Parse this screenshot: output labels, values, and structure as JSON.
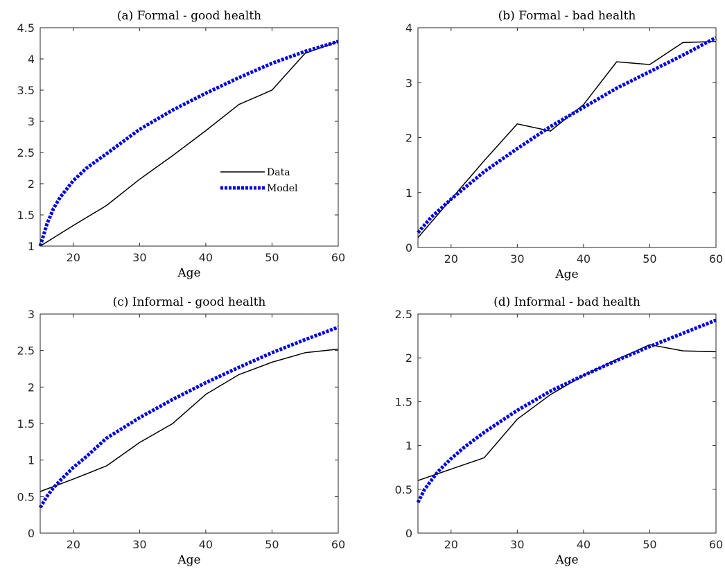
{
  "chart_data": [
    {
      "type": "line",
      "title": "(a) Formal - good health",
      "xlabel": "Age",
      "ylabel": "",
      "xlim": [
        15,
        60
      ],
      "ylim": [
        1,
        4.5
      ],
      "xticks": [
        20,
        30,
        40,
        50,
        60
      ],
      "yticks": [
        1,
        1.5,
        2,
        2.5,
        3,
        3.5,
        4,
        4.5
      ],
      "ytick_labels": [
        "1",
        "1.5",
        "2",
        "2.5",
        "3",
        "3.5",
        "4",
        "4.5"
      ],
      "legend": true,
      "legend_position": "center-right",
      "series": [
        {
          "name": "Data",
          "style": "solid",
          "color": "#000000",
          "x": [
            15,
            20,
            25,
            30,
            35,
            40,
            45,
            50,
            55,
            60
          ],
          "y": [
            1.0,
            1.33,
            1.65,
            2.07,
            2.45,
            2.85,
            3.27,
            3.5,
            4.09,
            4.28
          ]
        },
        {
          "name": "Model",
          "style": "dotted",
          "color": "#0000e6",
          "x": [
            15,
            16,
            17,
            18,
            20,
            22,
            25,
            30,
            35,
            40,
            45,
            50,
            55,
            60
          ],
          "y": [
            1.0,
            1.35,
            1.6,
            1.78,
            2.05,
            2.25,
            2.48,
            2.87,
            3.18,
            3.45,
            3.7,
            3.93,
            4.12,
            4.28
          ]
        }
      ]
    },
    {
      "type": "line",
      "title": "(b) Formal - bad health",
      "xlabel": "Age",
      "ylabel": "",
      "xlim": [
        15,
        60
      ],
      "ylim": [
        0,
        4
      ],
      "xticks": [
        20,
        30,
        40,
        50,
        60
      ],
      "yticks": [
        0,
        1,
        2,
        3,
        4
      ],
      "ytick_labels": [
        "0",
        "1",
        "2",
        "3",
        "4"
      ],
      "legend": false,
      "series": [
        {
          "name": "Data",
          "style": "solid",
          "color": "#000000",
          "x": [
            15,
            20,
            25,
            30,
            35,
            40,
            45,
            50,
            55,
            60
          ],
          "y": [
            0.18,
            0.88,
            1.58,
            2.25,
            2.12,
            2.6,
            3.38,
            3.33,
            3.73,
            3.75
          ]
        },
        {
          "name": "Model",
          "style": "dotted",
          "color": "#0000e6",
          "x": [
            15,
            17,
            20,
            25,
            30,
            35,
            40,
            45,
            50,
            55,
            60
          ],
          "y": [
            0.27,
            0.55,
            0.88,
            1.38,
            1.8,
            2.2,
            2.55,
            2.9,
            3.2,
            3.5,
            3.82
          ]
        }
      ]
    },
    {
      "type": "line",
      "title": "(c) Informal - good health",
      "xlabel": "Age",
      "ylabel": "",
      "xlim": [
        15,
        60
      ],
      "ylim": [
        0,
        3
      ],
      "xticks": [
        20,
        30,
        40,
        50,
        60
      ],
      "yticks": [
        0,
        0.5,
        1,
        1.5,
        2,
        2.5,
        3
      ],
      "ytick_labels": [
        "0",
        "0.5",
        "1",
        "1.5",
        "2",
        "2.5",
        "3"
      ],
      "legend": false,
      "series": [
        {
          "name": "Data",
          "style": "solid",
          "color": "#000000",
          "x": [
            15,
            20,
            25,
            30,
            35,
            40,
            45,
            50,
            55,
            60
          ],
          "y": [
            0.57,
            0.74,
            0.92,
            1.24,
            1.5,
            1.9,
            2.17,
            2.34,
            2.47,
            2.52
          ]
        },
        {
          "name": "Model",
          "style": "dotted",
          "color": "#0000e6",
          "x": [
            15,
            16,
            17,
            18,
            20,
            22,
            25,
            30,
            35,
            40,
            45,
            50,
            55,
            60
          ],
          "y": [
            0.35,
            0.5,
            0.62,
            0.72,
            0.9,
            1.05,
            1.3,
            1.58,
            1.83,
            2.06,
            2.27,
            2.47,
            2.65,
            2.82
          ]
        }
      ]
    },
    {
      "type": "line",
      "title": "(d) Informal - bad health",
      "xlabel": "Age",
      "ylabel": "",
      "xlim": [
        15,
        60
      ],
      "ylim": [
        0,
        2.5
      ],
      "xticks": [
        20,
        30,
        40,
        50,
        60
      ],
      "yticks": [
        0,
        0.5,
        1,
        1.5,
        2,
        2.5
      ],
      "ytick_labels": [
        "0",
        "0.5",
        "1",
        "1.5",
        "2",
        "2.5"
      ],
      "legend": false,
      "series": [
        {
          "name": "Data",
          "style": "solid",
          "color": "#000000",
          "x": [
            15,
            20,
            25,
            30,
            35,
            40,
            45,
            50,
            55,
            60
          ],
          "y": [
            0.6,
            0.73,
            0.86,
            1.3,
            1.58,
            1.8,
            1.98,
            2.15,
            2.08,
            2.07
          ]
        },
        {
          "name": "Model",
          "style": "dotted",
          "color": "#0000e6",
          "x": [
            15,
            16,
            17,
            18,
            20,
            22,
            25,
            30,
            35,
            40,
            45,
            50,
            55,
            60
          ],
          "y": [
            0.35,
            0.5,
            0.6,
            0.7,
            0.85,
            0.98,
            1.15,
            1.4,
            1.62,
            1.8,
            1.97,
            2.13,
            2.28,
            2.43
          ]
        }
      ]
    }
  ]
}
